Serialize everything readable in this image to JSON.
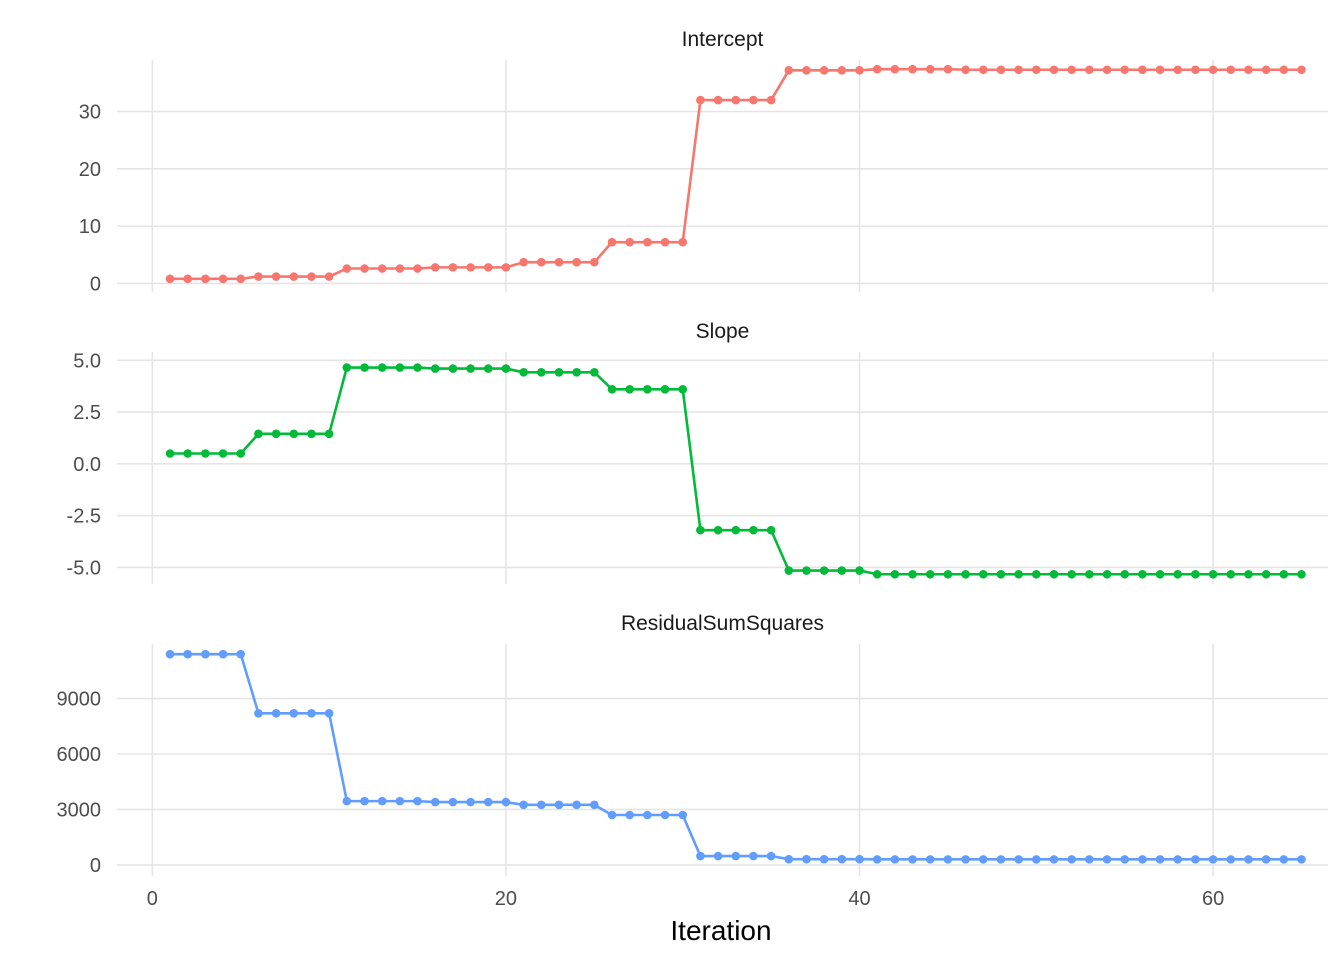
{
  "chart_data": {
    "type": "line",
    "layout": "faceted",
    "xlabel": "Iteration",
    "x_ticks": [
      0,
      20,
      40,
      60
    ],
    "xlim": [
      -2,
      66.5
    ],
    "grid": true,
    "legend": "none",
    "x": [
      1,
      2,
      3,
      4,
      5,
      6,
      7,
      8,
      9,
      10,
      11,
      12,
      13,
      14,
      15,
      16,
      17,
      18,
      19,
      20,
      21,
      22,
      23,
      24,
      25,
      26,
      27,
      28,
      29,
      30,
      31,
      32,
      33,
      34,
      35,
      36,
      37,
      38,
      39,
      40,
      41,
      42,
      43,
      44,
      45,
      46,
      47,
      48,
      49,
      50,
      51,
      52,
      53,
      54,
      55,
      56,
      57,
      58,
      59,
      60,
      61,
      62,
      63,
      64,
      65
    ],
    "panels": [
      {
        "title": "Intercept",
        "color": "#F8766D",
        "ylim": [
          -1.5,
          39
        ],
        "y_ticks": [
          0,
          10,
          20,
          30
        ],
        "y_tick_labels": [
          "0",
          "10",
          "20",
          "30"
        ],
        "values": [
          0.8,
          0.8,
          0.8,
          0.8,
          0.8,
          1.2,
          1.2,
          1.2,
          1.2,
          1.2,
          2.6,
          2.6,
          2.6,
          2.6,
          2.6,
          2.8,
          2.8,
          2.8,
          2.8,
          2.8,
          3.7,
          3.7,
          3.7,
          3.7,
          3.7,
          7.2,
          7.2,
          7.2,
          7.2,
          7.2,
          32.0,
          32.0,
          32.0,
          32.0,
          32.0,
          37.2,
          37.2,
          37.2,
          37.2,
          37.2,
          37.4,
          37.4,
          37.4,
          37.4,
          37.4,
          37.3,
          37.3,
          37.3,
          37.3,
          37.3,
          37.3,
          37.3,
          37.3,
          37.3,
          37.3,
          37.3,
          37.3,
          37.3,
          37.3,
          37.3,
          37.3,
          37.3,
          37.3,
          37.3,
          37.3
        ]
      },
      {
        "title": "Slope",
        "color": "#00BA38",
        "ylim": [
          -5.8,
          5.4
        ],
        "y_ticks": [
          5.0,
          2.5,
          0.0,
          -2.5,
          -5.0
        ],
        "y_tick_labels": [
          "5.0",
          "2.5",
          "0.0",
          "-2.5",
          "-5.0"
        ],
        "values": [
          0.5,
          0.5,
          0.5,
          0.5,
          0.5,
          1.45,
          1.45,
          1.45,
          1.45,
          1.45,
          4.65,
          4.65,
          4.65,
          4.65,
          4.65,
          4.6,
          4.6,
          4.6,
          4.6,
          4.6,
          4.42,
          4.42,
          4.42,
          4.42,
          4.42,
          3.6,
          3.6,
          3.6,
          3.6,
          3.6,
          -3.2,
          -3.2,
          -3.2,
          -3.2,
          -3.2,
          -5.15,
          -5.15,
          -5.15,
          -5.15,
          -5.15,
          -5.33,
          -5.33,
          -5.33,
          -5.33,
          -5.33,
          -5.33,
          -5.33,
          -5.33,
          -5.33,
          -5.33,
          -5.33,
          -5.33,
          -5.33,
          -5.33,
          -5.33,
          -5.33,
          -5.33,
          -5.33,
          -5.33,
          -5.33,
          -5.33,
          -5.33,
          -5.33,
          -5.33,
          -5.33
        ]
      },
      {
        "title": "ResidualSumSquares",
        "color": "#619CFF",
        "ylim": [
          -600,
          11950
        ],
        "y_ticks": [
          0,
          3000,
          6000,
          9000
        ],
        "y_tick_labels": [
          "0",
          "3000",
          "6000",
          "9000"
        ],
        "values": [
          11400,
          11400,
          11400,
          11400,
          11400,
          8200,
          8200,
          8200,
          8200,
          8200,
          3450,
          3450,
          3450,
          3450,
          3450,
          3400,
          3400,
          3400,
          3400,
          3400,
          3250,
          3250,
          3250,
          3250,
          3250,
          2700,
          2700,
          2700,
          2700,
          2700,
          480,
          480,
          480,
          480,
          480,
          310,
          310,
          310,
          310,
          310,
          300,
          300,
          300,
          300,
          300,
          300,
          300,
          300,
          300,
          300,
          300,
          300,
          300,
          300,
          300,
          300,
          300,
          300,
          300,
          300,
          300,
          300,
          300,
          300,
          300
        ]
      }
    ]
  }
}
